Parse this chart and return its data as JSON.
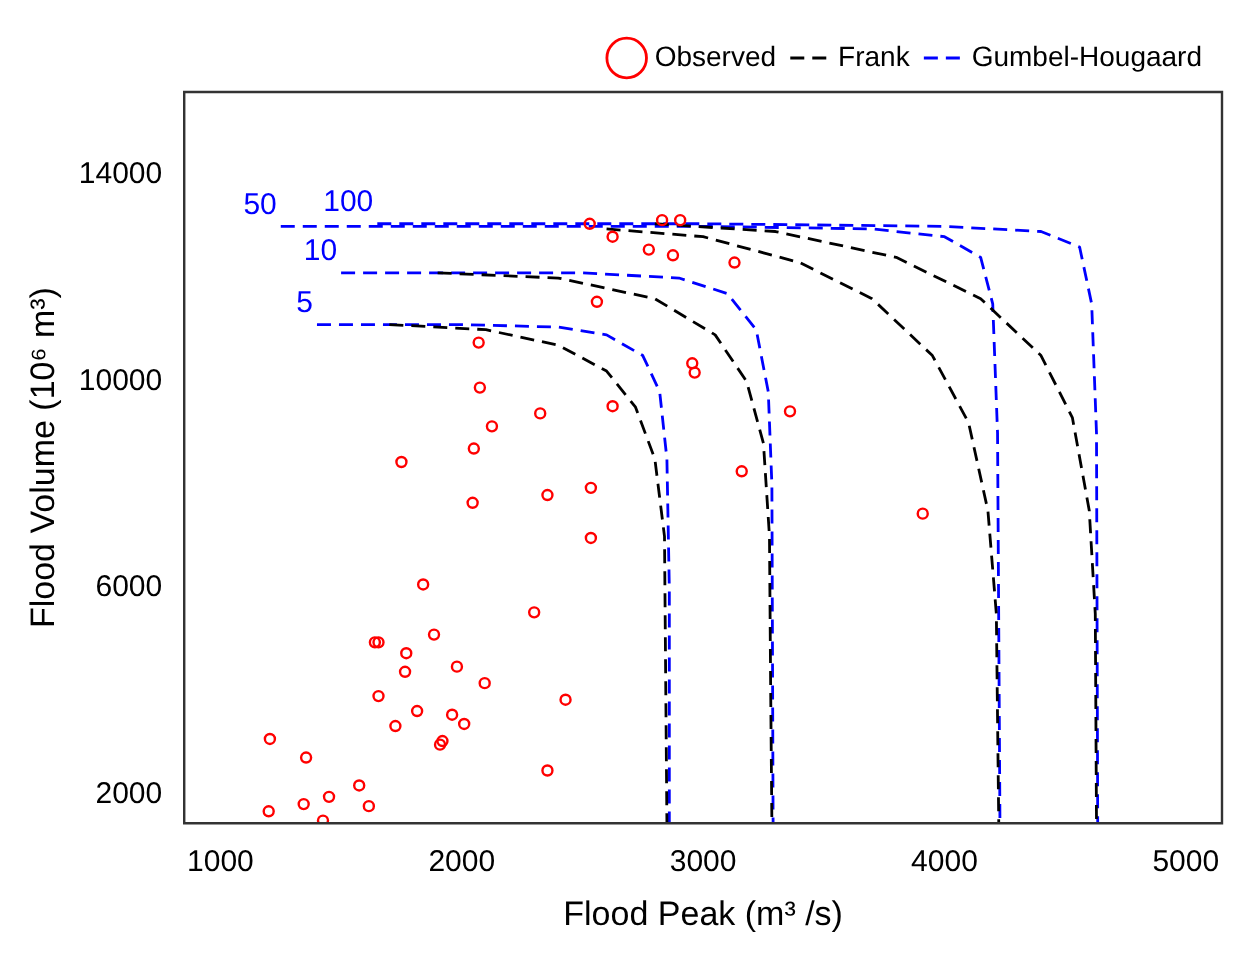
{
  "chart_data": {
    "type": "scatter",
    "xlabel": "Flood Peak (m³ /s)",
    "ylabel": "Flood Volume (10⁶ m³)",
    "xlim": [
      850,
      5150
    ],
    "ylim": [
      1450,
      15600
    ],
    "xticks": [
      1000,
      2000,
      3000,
      4000,
      5000
    ],
    "yticks": [
      2000,
      6000,
      10000,
      14000
    ],
    "grid": false,
    "legend": "top right",
    "series": [
      {
        "name": "Observed",
        "color": "#ff0000",
        "marker": "circle",
        "x": [
          1200,
          1205,
          1345,
          1355,
          1425,
          1450,
          1575,
          1615,
          1655,
          1725,
          1640,
          1655,
          1770,
          1765,
          1815,
          1840,
          1885,
          1910,
          1920,
          1960,
          1980,
          2010,
          2095,
          2300,
          2355,
          2430,
          2355,
          2535,
          2535,
          2045,
          1750,
          2050,
          2070,
          2075,
          2125,
          2325,
          2625,
          2560,
          2530,
          2625,
          2775,
          2875,
          2830,
          2905,
          2955,
          2965,
          3130,
          3360,
          3160,
          3910
        ],
        "values": [
          1680,
          3080,
          1820,
          2720,
          1500,
          1960,
          2180,
          1780,
          3910,
          3330,
          4950,
          4950,
          4740,
          4380,
          3620,
          6070,
          5100,
          2970,
          3040,
          3550,
          4480,
          3370,
          4160,
          5530,
          2470,
          3840,
          7800,
          7940,
          6970,
          7650,
          8440,
          8700,
          10750,
          9880,
          9130,
          9380,
          9520,
          11540,
          13050,
          12800,
          12550,
          12440,
          13120,
          13120,
          10350,
          10170,
          12300,
          9420,
          8260,
          7440
        ]
      },
      {
        "name": "Frank",
        "type": "line",
        "color": "#000000",
        "line_style": "dashed",
        "marker": "none",
        "x": [
          1700,
          2100,
          2400,
          2600,
          2720,
          2800,
          2840,
          2850
        ],
        "values": [
          11100,
          11000,
          10700,
          10200,
          9500,
          8500,
          7000,
          1450
        ]
      },
      {
        "type": "line",
        "color": "#000000",
        "line_style": "dashed",
        "marker": "none",
        "x": [
          1900,
          2400,
          2800,
          3050,
          3180,
          3250,
          3275,
          3280,
          3285
        ],
        "values": [
          12100,
          12000,
          11600,
          10900,
          10000,
          8800,
          7000,
          4000,
          1450
        ]
      },
      {
        "type": "line",
        "color": "#000000",
        "line_style": "dashed",
        "marker": "none",
        "x": [
          2600,
          3000,
          3400,
          3700,
          3950,
          4100,
          4180,
          4215,
          4225
        ],
        "values": [
          12950,
          12800,
          12300,
          11600,
          10500,
          9200,
          7500,
          5500,
          1450
        ]
      },
      {
        "type": "line",
        "color": "#000000",
        "line_style": "dashed",
        "marker": "none",
        "x": [
          2800,
          3300,
          3800,
          4150,
          4400,
          4530,
          4600,
          4625,
          4630
        ],
        "values": [
          13050,
          12900,
          12400,
          11600,
          10500,
          9300,
          7500,
          5500,
          1450
        ]
      },
      {
        "name": "Gumbel-Hougaard",
        "type": "line",
        "color": "#0000ff",
        "line_style": "dashed",
        "marker": "none",
        "x": [
          1400,
          2000,
          2400,
          2600,
          2750,
          2820,
          2850,
          2860,
          2860
        ],
        "values": [
          11100,
          11100,
          11050,
          10900,
          10500,
          9800,
          8500,
          6000,
          1450
        ]
      },
      {
        "type": "line",
        "color": "#0000ff",
        "line_style": "dashed",
        "marker": "none",
        "x": [
          1500,
          2500,
          2900,
          3100,
          3220,
          3270,
          3285,
          3290
        ],
        "values": [
          12100,
          12100,
          12000,
          11700,
          11000,
          9800,
          8000,
          1450
        ]
      },
      {
        "type": "line",
        "color": "#0000ff",
        "line_style": "dashed",
        "marker": "none",
        "x": [
          1250,
          3000,
          3700,
          4000,
          4150,
          4200,
          4220,
          4230
        ],
        "values": [
          13000,
          13000,
          12950,
          12800,
          12400,
          11500,
          9000,
          1450
        ]
      },
      {
        "type": "line",
        "color": "#0000ff",
        "line_style": "dashed",
        "marker": "none",
        "x": [
          1650,
          3000,
          4000,
          4400,
          4560,
          4610,
          4630,
          4635
        ],
        "values": [
          13050,
          13050,
          13000,
          12900,
          12600,
          11500,
          9000,
          1450
        ]
      }
    ],
    "annotations": [
      {
        "text": "5",
        "x": 1400,
        "y": 11100
      },
      {
        "text": "10",
        "x": 1500,
        "y": 12100
      },
      {
        "text": "50",
        "x": 1250,
        "y": 13000
      },
      {
        "text": "100",
        "x": 1650,
        "y": 13050
      }
    ]
  }
}
